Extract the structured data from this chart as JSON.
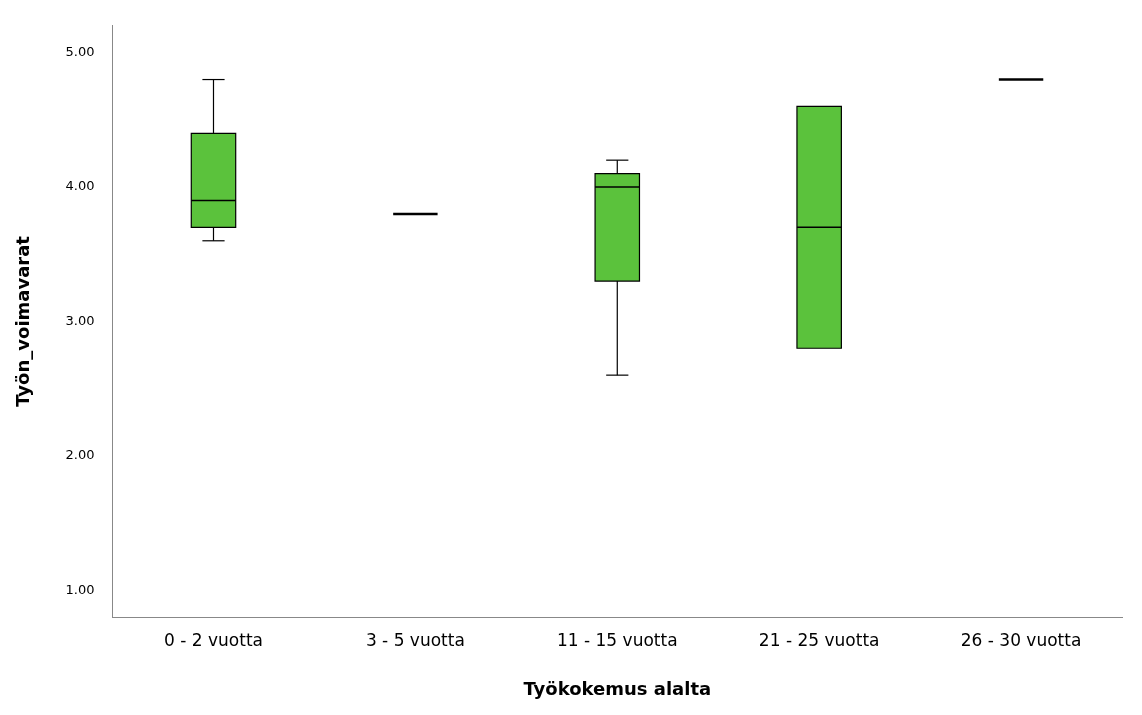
{
  "chart_data": {
    "type": "box",
    "xlabel": "Työkokemus alalta",
    "ylabel": "Työn_voimavarat",
    "categories": [
      "0 - 2 vuotta",
      "3 - 5 vuotta",
      "11 - 15 vuotta",
      "21 - 25 vuotta",
      "26 - 30 vuotta"
    ],
    "colors": [
      "#5bc23c",
      "#000000",
      "#5bc23c",
      "#5bc23c",
      "#000000"
    ],
    "boxes": [
      {
        "low": 3.6,
        "q1": 3.7,
        "median": 3.9,
        "q3": 4.4,
        "high": 4.8
      },
      {
        "low": 3.8,
        "q1": 3.8,
        "median": 3.8,
        "q3": 3.8,
        "high": 3.8
      },
      {
        "low": 2.6,
        "q1": 3.3,
        "median": 4.0,
        "q3": 4.1,
        "high": 4.2
      },
      {
        "low": 2.8,
        "q1": 2.8,
        "median": 3.7,
        "q3": 4.6,
        "high": 4.6
      },
      {
        "low": 4.8,
        "q1": 4.8,
        "median": 4.8,
        "q3": 4.8,
        "high": 4.8
      }
    ],
    "ylim": [
      0.8,
      5.2
    ],
    "yticks": [
      {
        "value": 1,
        "label": "1.00"
      },
      {
        "value": 2,
        "label": "2.00"
      },
      {
        "value": 3,
        "label": "3.00"
      },
      {
        "value": 4,
        "label": "4.00"
      },
      {
        "value": 5,
        "label": "5.00"
      }
    ],
    "grid": false,
    "legend": false
  }
}
